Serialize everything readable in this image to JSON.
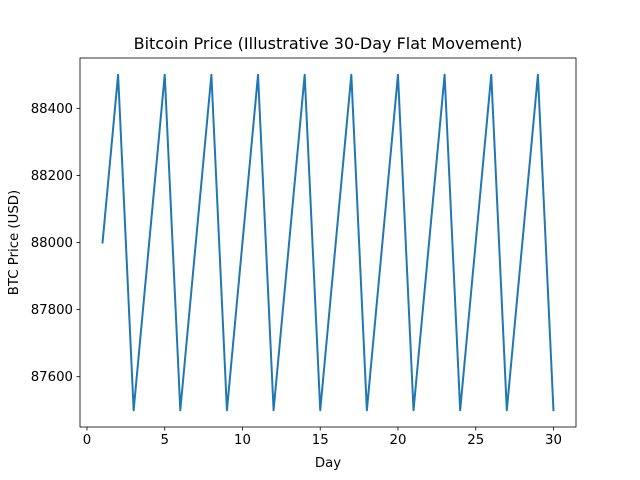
{
  "chart_data": {
    "type": "line",
    "title": "Bitcoin Price (Illustrative 30-Day Flat Movement)",
    "xlabel": "Day",
    "ylabel": "BTC Price (USD)",
    "x": [
      1,
      2,
      3,
      4,
      5,
      6,
      7,
      8,
      9,
      10,
      11,
      12,
      13,
      14,
      15,
      16,
      17,
      18,
      19,
      20,
      21,
      22,
      23,
      24,
      25,
      26,
      27,
      28,
      29,
      30
    ],
    "series": [
      {
        "name": "",
        "color": "#1f77b4",
        "values": [
          88000,
          88500,
          87500,
          88000,
          88500,
          87500,
          88000,
          88500,
          87500,
          88000,
          88500,
          87500,
          88000,
          88500,
          87500,
          88000,
          88500,
          87500,
          88000,
          88500,
          87500,
          88000,
          88500,
          87500,
          88000,
          88500,
          87500,
          88000,
          88500,
          87500
        ]
      }
    ],
    "xlim": [
      -0.45,
      31.45
    ],
    "ylim": [
      87450,
      88550
    ],
    "xticks": [
      0,
      5,
      10,
      15,
      20,
      25,
      30
    ],
    "yticks": [
      87600,
      87800,
      88000,
      88200,
      88400
    ],
    "grid": false,
    "legend": "none"
  }
}
